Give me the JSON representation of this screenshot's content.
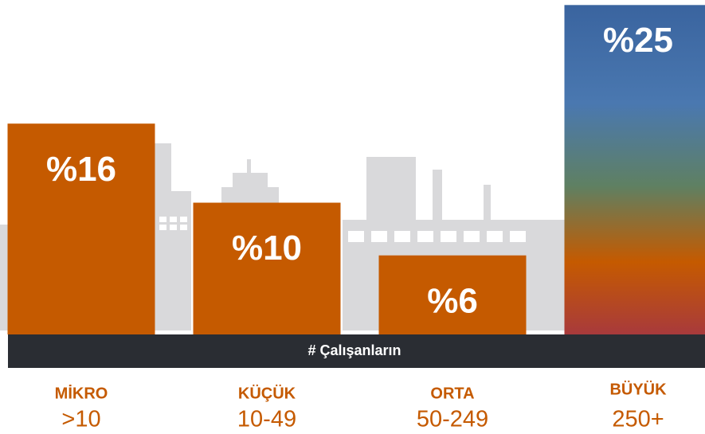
{
  "chart_data": {
    "type": "bar",
    "categories": [
      "MİKRO",
      "KÜÇÜK",
      "ORTA",
      "BÜYÜK"
    ],
    "ranges": [
      ">10",
      "10-49",
      "50-249",
      "250+"
    ],
    "values": [
      16,
      10,
      6,
      25
    ],
    "value_labels": [
      "%16",
      "%10",
      "%6",
      "%25"
    ],
    "xlabel": "# Çalışanların",
    "color": "#c55a00",
    "ylim": [
      0,
      25.2
    ]
  }
}
